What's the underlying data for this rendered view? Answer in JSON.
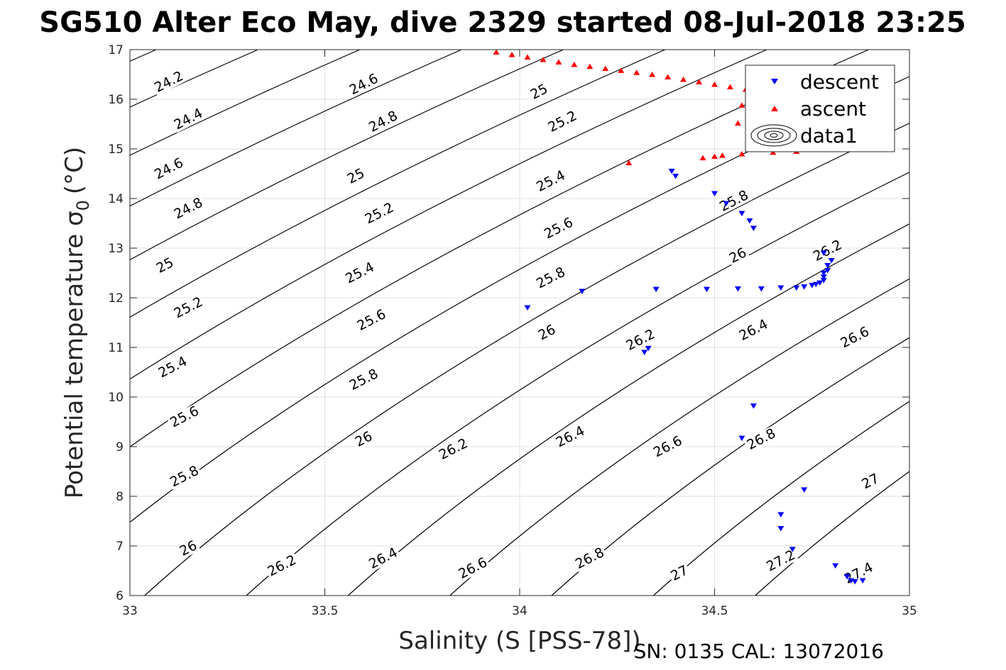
{
  "chart_data": {
    "type": "scatter",
    "title": "SG510 Alter Eco May, dive 2329 started 08-Jul-2018 23:25",
    "xlabel": "Salinity (S [PSS-78])",
    "ylabel_main": "Potential temperature σ",
    "ylabel_sub": "0",
    "ylabel_unit": "(°C)",
    "footer": "SN: 0135  CAL: 13072016",
    "xlim": [
      33,
      35
    ],
    "ylim": [
      6,
      17
    ],
    "xticks": [
      33,
      33.5,
      34,
      34.5,
      35
    ],
    "xtick_labels": [
      "33",
      "33.5",
      "34",
      "34.5",
      "35"
    ],
    "yticks": [
      6,
      7,
      8,
      9,
      10,
      11,
      12,
      13,
      14,
      15,
      16,
      17
    ],
    "ytick_labels": [
      "6",
      "7",
      "8",
      "9",
      "10",
      "11",
      "12",
      "13",
      "14",
      "15",
      "16",
      "17"
    ],
    "grid": true,
    "legend_position": "top-right",
    "legend": [
      {
        "label": "descent",
        "marker": "triangle-down",
        "color": "#0000ff"
      },
      {
        "label": "ascent",
        "marker": "triangle-up",
        "color": "#ff0000"
      },
      {
        "label": "data1",
        "marker": "contour",
        "color": "#000000"
      }
    ],
    "contour_levels": [
      24.2,
      24.4,
      24.6,
      24.8,
      25,
      25.2,
      25.4,
      25.6,
      25.8,
      26,
      26.2,
      26.4,
      26.6,
      26.8,
      27,
      27.2,
      27.4
    ],
    "contour_labels": [
      {
        "text": "24.2",
        "s": 33.1,
        "t": 16.35
      },
      {
        "text": "24.4",
        "s": 33.15,
        "t": 15.6
      },
      {
        "text": "24.6",
        "s": 33.1,
        "t": 14.6
      },
      {
        "text": "24.8",
        "s": 33.15,
        "t": 13.8
      },
      {
        "text": "25",
        "s": 33.09,
        "t": 12.65
      },
      {
        "text": "25.2",
        "s": 33.15,
        "t": 11.8
      },
      {
        "text": "25.4",
        "s": 33.11,
        "t": 10.6
      },
      {
        "text": "25.6",
        "s": 33.14,
        "t": 9.6
      },
      {
        "text": "25.8",
        "s": 33.14,
        "t": 8.4
      },
      {
        "text": "26",
        "s": 33.15,
        "t": 6.95
      },
      {
        "text": "26.2",
        "s": 33.39,
        "t": 6.6
      },
      {
        "text": "26.4",
        "s": 33.65,
        "t": 6.75
      },
      {
        "text": "26.6",
        "s": 33.88,
        "t": 6.55
      },
      {
        "text": "26.8",
        "s": 34.18,
        "t": 6.75
      },
      {
        "text": "27",
        "s": 34.41,
        "t": 6.45
      },
      {
        "text": "27.2",
        "s": 34.67,
        "t": 6.7
      },
      {
        "text": "27.4",
        "s": 34.87,
        "t": 6.45
      },
      {
        "text": "24.6",
        "s": 33.6,
        "t": 16.3
      },
      {
        "text": "24.8",
        "s": 33.65,
        "t": 15.55
      },
      {
        "text": "25",
        "s": 33.58,
        "t": 14.45
      },
      {
        "text": "25.2",
        "s": 33.64,
        "t": 13.7
      },
      {
        "text": "25.4",
        "s": 33.59,
        "t": 12.5
      },
      {
        "text": "25.6",
        "s": 33.62,
        "t": 11.55
      },
      {
        "text": "25.8",
        "s": 33.6,
        "t": 10.35
      },
      {
        "text": "26",
        "s": 33.6,
        "t": 9.15
      },
      {
        "text": "26.2",
        "s": 33.83,
        "t": 8.95
      },
      {
        "text": "26.4",
        "s": 34.13,
        "t": 9.2
      },
      {
        "text": "26.6",
        "s": 34.38,
        "t": 9.0
      },
      {
        "text": "26.8",
        "s": 34.62,
        "t": 9.15
      },
      {
        "text": "27",
        "s": 34.9,
        "t": 8.3
      },
      {
        "text": "25",
        "s": 34.05,
        "t": 16.15
      },
      {
        "text": "25.2",
        "s": 34.11,
        "t": 15.55
      },
      {
        "text": "25.4",
        "s": 34.08,
        "t": 14.35
      },
      {
        "text": "25.6",
        "s": 34.1,
        "t": 13.4
      },
      {
        "text": "25.8",
        "s": 34.08,
        "t": 12.4
      },
      {
        "text": "26",
        "s": 34.07,
        "t": 11.3
      },
      {
        "text": "26.2",
        "s": 34.31,
        "t": 11.15
      },
      {
        "text": "26.4",
        "s": 34.6,
        "t": 11.35
      },
      {
        "text": "26.6",
        "s": 34.86,
        "t": 11.2
      },
      {
        "text": "25.8",
        "s": 34.55,
        "t": 13.95
      },
      {
        "text": "26",
        "s": 34.56,
        "t": 12.85
      },
      {
        "text": "26.2",
        "s": 34.79,
        "t": 12.95
      }
    ],
    "series": [
      {
        "name": "descent",
        "marker": "triangle-down",
        "color": "#0000ff",
        "points": [
          [
            34.39,
            14.55
          ],
          [
            34.4,
            14.45
          ],
          [
            34.5,
            14.1
          ],
          [
            34.53,
            13.9
          ],
          [
            34.57,
            13.7
          ],
          [
            34.59,
            13.55
          ],
          [
            34.6,
            13.4
          ],
          [
            34.78,
            12.9
          ],
          [
            34.8,
            12.75
          ],
          [
            34.79,
            12.65
          ],
          [
            34.79,
            12.55
          ],
          [
            34.78,
            12.5
          ],
          [
            34.78,
            12.42
          ],
          [
            34.78,
            12.35
          ],
          [
            34.77,
            12.3
          ],
          [
            34.76,
            12.27
          ],
          [
            34.75,
            12.25
          ],
          [
            34.73,
            12.22
          ],
          [
            34.71,
            12.2
          ],
          [
            34.67,
            12.2
          ],
          [
            34.62,
            12.18
          ],
          [
            34.56,
            12.18
          ],
          [
            34.48,
            12.17
          ],
          [
            34.35,
            12.17
          ],
          [
            34.16,
            12.13
          ],
          [
            34.02,
            11.8
          ],
          [
            34.33,
            10.98
          ],
          [
            34.32,
            10.9
          ],
          [
            34.6,
            9.82
          ],
          [
            34.57,
            9.17
          ],
          [
            34.73,
            8.13
          ],
          [
            34.67,
            7.63
          ],
          [
            34.67,
            7.35
          ],
          [
            34.7,
            6.93
          ],
          [
            34.81,
            6.6
          ],
          [
            34.84,
            6.38
          ],
          [
            34.85,
            6.3
          ],
          [
            34.86,
            6.28
          ],
          [
            34.88,
            6.3
          ]
        ]
      },
      {
        "name": "ascent",
        "marker": "triangle-up",
        "color": "#ff0000",
        "points": [
          [
            33.94,
            16.95
          ],
          [
            33.98,
            16.9
          ],
          [
            34.02,
            16.85
          ],
          [
            34.06,
            16.8
          ],
          [
            34.1,
            16.75
          ],
          [
            34.14,
            16.7
          ],
          [
            34.18,
            16.66
          ],
          [
            34.22,
            16.62
          ],
          [
            34.26,
            16.58
          ],
          [
            34.3,
            16.54
          ],
          [
            34.34,
            16.5
          ],
          [
            34.38,
            16.45
          ],
          [
            34.42,
            16.4
          ],
          [
            34.46,
            16.35
          ],
          [
            34.5,
            16.3
          ],
          [
            34.54,
            16.25
          ],
          [
            34.58,
            16.2
          ],
          [
            34.63,
            16.15
          ],
          [
            34.68,
            16.1
          ],
          [
            34.73,
            16.05
          ],
          [
            34.76,
            16.0
          ],
          [
            34.57,
            15.88
          ],
          [
            34.56,
            15.52
          ],
          [
            34.28,
            14.72
          ],
          [
            34.47,
            14.82
          ],
          [
            34.5,
            14.85
          ],
          [
            34.52,
            14.87
          ],
          [
            34.57,
            14.9
          ],
          [
            34.65,
            14.93
          ],
          [
            34.71,
            14.95
          ]
        ]
      }
    ]
  }
}
